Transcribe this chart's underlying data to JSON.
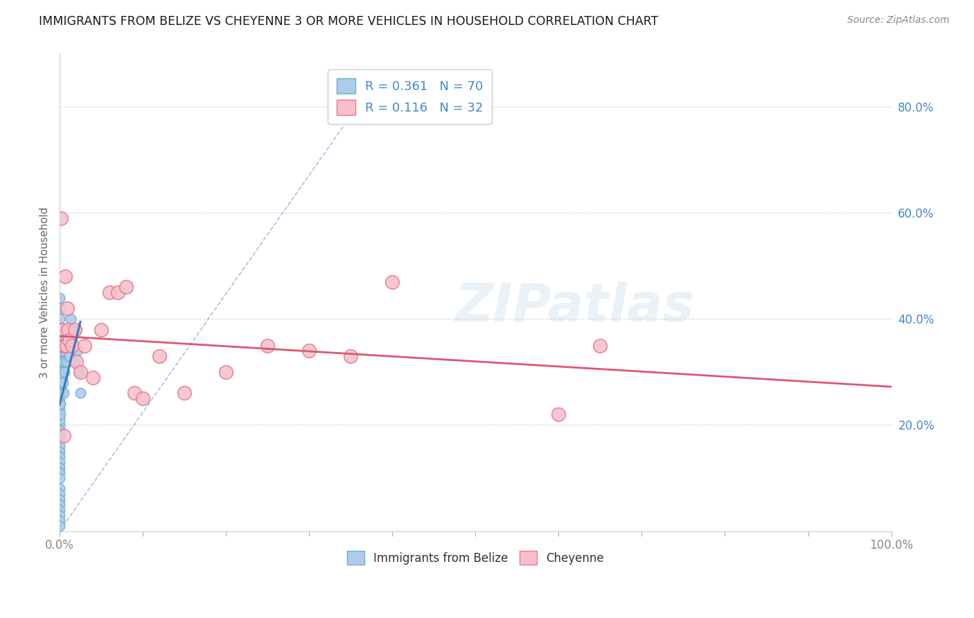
{
  "title": "IMMIGRANTS FROM BELIZE VS CHEYENNE 3 OR MORE VEHICLES IN HOUSEHOLD CORRELATION CHART",
  "source": "Source: ZipAtlas.com",
  "ylabel": "3 or more Vehicles in Household",
  "r_belize": 0.361,
  "n_belize": 70,
  "r_cheyenne": 0.116,
  "n_cheyenne": 32,
  "color_belize": "#aecce8",
  "color_cheyenne": "#f5c0cb",
  "edge_belize": "#6aaed6",
  "edge_cheyenne": "#e8788a",
  "trend_belize_color": "#3a7abf",
  "trend_cheyenne_color": "#e05570",
  "watermark": "ZIPatlas",
  "belize_x": [
    0.0,
    0.0,
    0.0,
    0.0,
    0.0,
    0.0,
    0.0,
    0.0,
    0.0,
    0.0,
    0.0,
    0.0,
    0.0,
    0.0,
    0.0,
    0.0,
    0.0,
    0.0,
    0.0,
    0.0,
    0.0,
    0.0,
    0.0,
    0.0,
    0.0,
    0.0,
    0.0,
    0.0,
    0.0,
    0.0,
    0.0,
    0.0,
    0.0,
    0.0,
    0.0,
    0.0,
    0.0,
    0.0,
    0.0,
    0.0,
    0.001,
    0.001,
    0.001,
    0.001,
    0.001,
    0.001,
    0.001,
    0.002,
    0.002,
    0.002,
    0.003,
    0.003,
    0.004,
    0.004,
    0.005,
    0.005,
    0.006,
    0.007,
    0.008,
    0.009,
    0.01,
    0.011,
    0.012,
    0.013,
    0.015,
    0.018,
    0.02,
    0.022,
    0.023,
    0.025
  ],
  "belize_y": [
    0.36,
    0.34,
    0.32,
    0.3,
    0.28,
    0.26,
    0.24,
    0.22,
    0.2,
    0.18,
    0.17,
    0.16,
    0.15,
    0.14,
    0.13,
    0.12,
    0.11,
    0.1,
    0.08,
    0.07,
    0.06,
    0.05,
    0.04,
    0.03,
    0.02,
    0.01,
    0.25,
    0.23,
    0.19,
    0.21,
    0.31,
    0.29,
    0.27,
    0.33,
    0.35,
    0.38,
    0.4,
    0.42,
    0.44,
    0.37,
    0.35,
    0.33,
    0.3,
    0.28,
    0.26,
    0.24,
    0.22,
    0.37,
    0.32,
    0.27,
    0.34,
    0.29,
    0.35,
    0.28,
    0.32,
    0.26,
    0.3,
    0.35,
    0.32,
    0.38,
    0.38,
    0.35,
    0.33,
    0.4,
    0.36,
    0.32,
    0.38,
    0.34,
    0.3,
    0.26
  ],
  "cheyenne_x": [
    0.001,
    0.002,
    0.003,
    0.004,
    0.005,
    0.006,
    0.007,
    0.008,
    0.009,
    0.01,
    0.012,
    0.015,
    0.018,
    0.02,
    0.025,
    0.03,
    0.04,
    0.05,
    0.06,
    0.07,
    0.08,
    0.09,
    0.1,
    0.12,
    0.15,
    0.2,
    0.25,
    0.3,
    0.35,
    0.4,
    0.6,
    0.65
  ],
  "cheyenne_y": [
    0.38,
    0.59,
    0.38,
    0.35,
    0.18,
    0.35,
    0.48,
    0.35,
    0.42,
    0.38,
    0.36,
    0.35,
    0.38,
    0.32,
    0.3,
    0.35,
    0.29,
    0.38,
    0.45,
    0.45,
    0.46,
    0.26,
    0.25,
    0.33,
    0.26,
    0.3,
    0.35,
    0.34,
    0.33,
    0.47,
    0.22,
    0.35
  ],
  "xlim": [
    0.0,
    1.0
  ],
  "ylim": [
    0.0,
    0.9
  ],
  "xtick_positions": [
    0.0,
    0.1,
    0.2,
    0.3,
    0.4,
    0.5,
    0.6,
    0.7,
    0.8,
    0.9,
    1.0
  ],
  "ytick_vals": [
    0.0,
    0.2,
    0.4,
    0.6,
    0.8
  ],
  "ytick_right_labels": [
    "",
    "20.0%",
    "40.0%",
    "60.0%",
    "80.0%"
  ],
  "legend_labels": [
    "Immigrants from Belize",
    "Cheyenne"
  ],
  "background_color": "#ffffff",
  "grid_color": "#d8d8d8",
  "title_color": "#1a1a1a",
  "source_color": "#888888",
  "axis_color": "#888888"
}
